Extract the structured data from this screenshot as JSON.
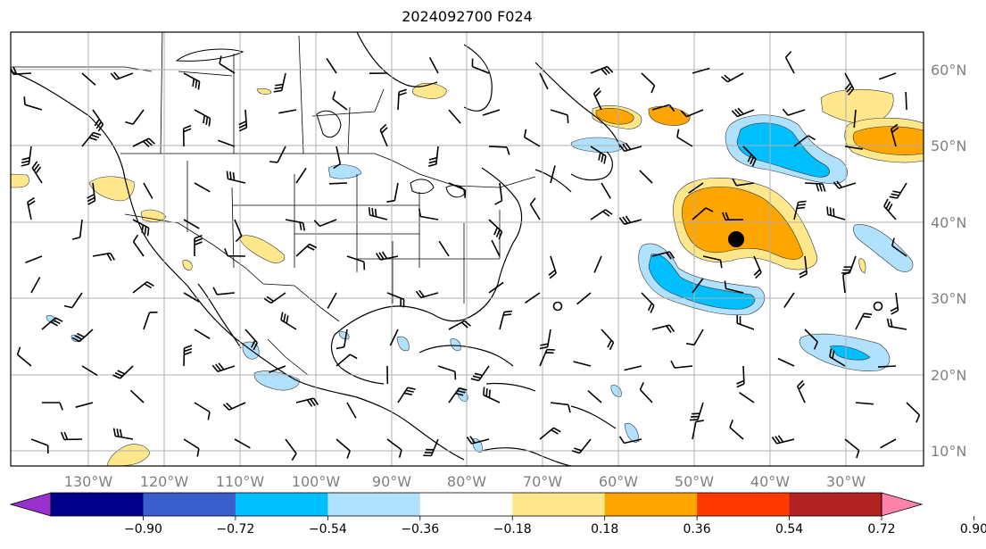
{
  "map": {
    "title": "2024092700 F024",
    "lat_labels": [
      "60°N",
      "50°N",
      "40°N",
      "30°N",
      "20°N",
      "10°N"
    ],
    "lon_labels": [
      "130°W",
      "120°W",
      "110°W",
      "100°W",
      "90°W",
      "80°W",
      "70°W",
      "60°W",
      "50°W",
      "40°W",
      "30°W"
    ],
    "grid": true,
    "basemap": "coastlines, country and state borders",
    "overlays": [
      "filled anomaly contours",
      "wind barbs",
      "center marker"
    ]
  },
  "colorbar": {
    "tick_labels": [
      "−0.90",
      "−0.72",
      "−0.54",
      "−0.36",
      "−0.18",
      "0.18",
      "0.36",
      "0.54",
      "0.72",
      "0.90"
    ],
    "colors": [
      "#9932cc",
      "#00008b",
      "#3a5fcd",
      "#00bfff",
      "#b0e2ff",
      "#ffffff",
      "#ffe88c",
      "#ffa500",
      "#ff3a00",
      "#b22222",
      "#ff82ab"
    ],
    "extend": "both"
  }
}
